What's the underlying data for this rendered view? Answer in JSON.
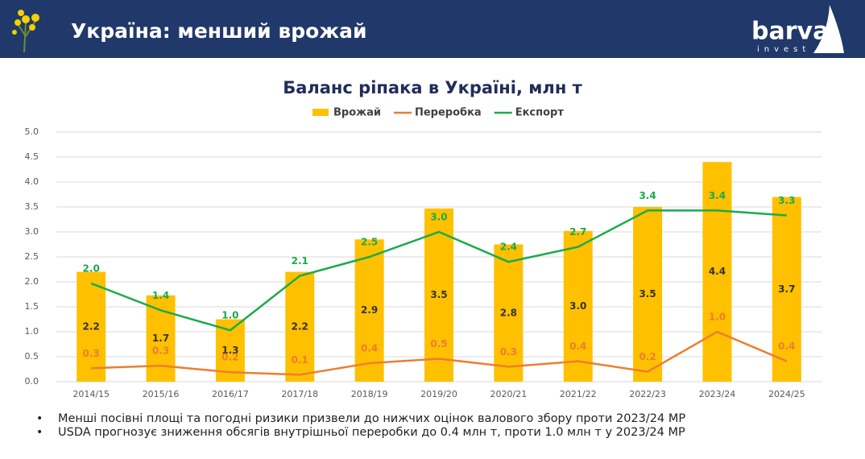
{
  "header": {
    "title": "Україна: менший врожай",
    "logo": "barva",
    "logo_sub": "invest"
  },
  "chart_data": {
    "type": "combo",
    "title": "Баланс ріпака в Україні, млн т",
    "categories": [
      "2014/15",
      "2015/16",
      "2016/17",
      "2017/18",
      "2018/19",
      "2019/20",
      "2020/21",
      "2021/22",
      "2022/23",
      "2023/24",
      "2024/25"
    ],
    "series": [
      {
        "name": "Врожай",
        "type": "bar",
        "color": "#ffc000",
        "label_color": "#333333",
        "values": [
          2.2,
          1.73,
          1.25,
          2.2,
          2.85,
          3.47,
          2.75,
          3.02,
          3.5,
          4.4,
          3.7
        ],
        "value_labels": [
          "2.2",
          "1.7",
          "1.3",
          "2.2",
          "2.9",
          "3.5",
          "2.8",
          "3.0",
          "3.5",
          "4.4",
          "3.7"
        ]
      },
      {
        "name": "Переробка",
        "type": "line",
        "color": "#ed7d31",
        "label_color": "#ed7d31",
        "values": [
          0.27,
          0.32,
          0.19,
          0.14,
          0.37,
          0.46,
          0.3,
          0.41,
          0.2,
          1.0,
          0.41
        ],
        "value_labels": [
          "0.3",
          "0.3",
          "0.2",
          "0.1",
          "0.4",
          "0.5",
          "0.3",
          "0.4",
          "0.2",
          "1.0",
          "0.4"
        ]
      },
      {
        "name": "Експорт",
        "type": "line",
        "color": "#1aab4b",
        "label_color": "#1aab4b",
        "values": [
          1.97,
          1.43,
          1.03,
          2.12,
          2.5,
          3.0,
          2.4,
          2.7,
          3.43,
          3.43,
          3.33
        ],
        "value_labels": [
          "2.0",
          "1.4",
          "1.0",
          "2.1",
          "2.5",
          "3.0",
          "2.4",
          "2.7",
          "3.4",
          "3.4",
          "3.3"
        ]
      }
    ],
    "ylim": [
      0,
      5
    ],
    "yticks": [
      {
        "value": 0,
        "label": "0.0"
      },
      0.5,
      {
        "value": 1,
        "label": "1.0"
      },
      1.5,
      {
        "value": 2,
        "label": "2.0"
      },
      2.5,
      {
        "value": 3,
        "label": "3.0"
      },
      3.5,
      {
        "value": 4,
        "label": "4.0"
      },
      4.5,
      {
        "value": 5,
        "label": "5.0"
      }
    ],
    "grid": true
  },
  "notes": [
    "Менші посівні площі та погодні ризики призвели до нижчих оцінок валового збору проти 2023/24 МР",
    "USDA прогнозує зниження обсягів внутрішньої переробки до 0.4 млн т, проти 1.0 млн т у 2023/24 МР"
  ]
}
